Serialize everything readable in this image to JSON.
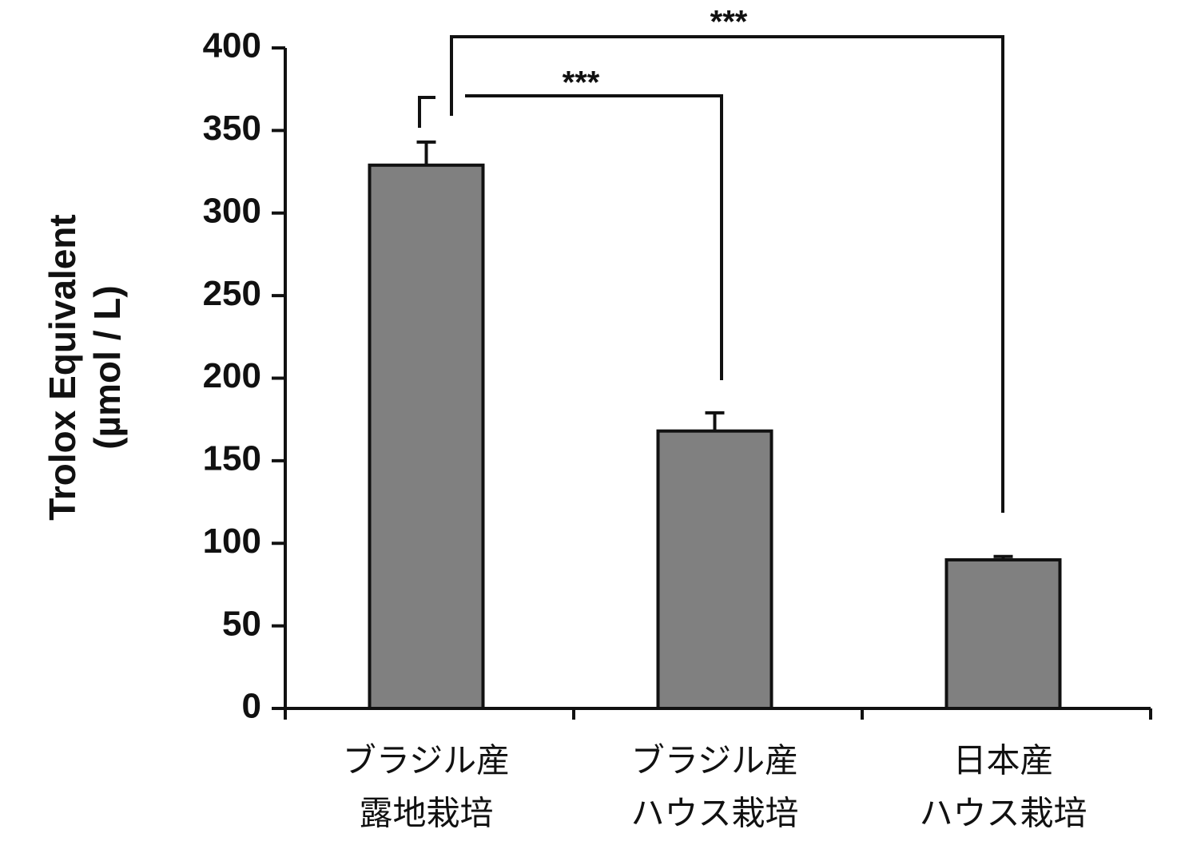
{
  "chart_data": {
    "type": "bar",
    "ylabel": [
      "Trolox Equivalent",
      "(µmol / L)"
    ],
    "categories": [
      [
        "ブラジル産",
        "露地栽培"
      ],
      [
        "ブラジル産",
        "ハウス栽培"
      ],
      [
        "日本産",
        "ハウス栽培"
      ]
    ],
    "values": [
      329,
      168,
      90
    ],
    "errors": [
      14,
      11,
      2
    ],
    "color": "#808080",
    "ylim": [
      0,
      400
    ],
    "yticks": [
      0,
      50,
      100,
      150,
      200,
      250,
      300,
      350,
      400
    ],
    "grid": false,
    "annotations": [
      "***",
      "***"
    ]
  }
}
